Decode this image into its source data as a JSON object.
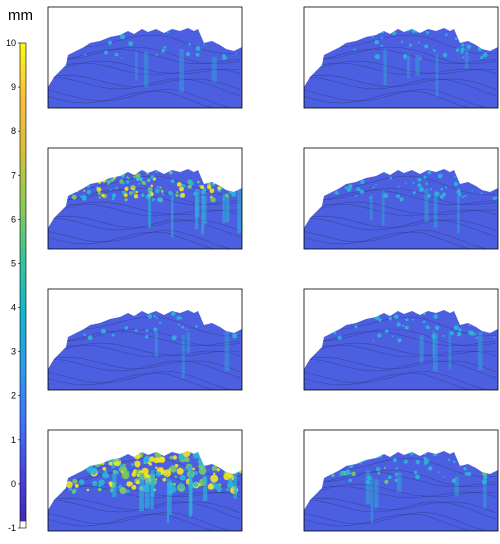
{
  "colorbar": {
    "unit": "mm",
    "colors": [
      "#3e26a8",
      "#4743e6",
      "#3f74fd",
      "#2b9cf0",
      "#14b5cd",
      "#3ac496",
      "#8cca59",
      "#d5c03a",
      "#fdbe3c",
      "#f9fb14"
    ]
  },
  "colors": {
    "land": "#4b5fe0",
    "land_shade": "#5a6fe8",
    "contour": "#2a2f6e",
    "cyan": "#2ab7d8",
    "green": "#7ccb5f",
    "yellow": "#f6e41f",
    "frame": "#000000"
  },
  "chart_data": {
    "type": "heatmap",
    "colorbar_ticks": [
      -1,
      0,
      1,
      2,
      3,
      4,
      5,
      6,
      7,
      8,
      9,
      10
    ],
    "vmin": -1,
    "vmax": 10,
    "panels": [
      {
        "id": "row1-left",
        "intensity": 0.15
      },
      {
        "id": "row1-right",
        "intensity": 0.2
      },
      {
        "id": "row2-left",
        "intensity": 0.7
      },
      {
        "id": "row2-right",
        "intensity": 0.3
      },
      {
        "id": "row3-left",
        "intensity": 0.12
      },
      {
        "id": "row3-right",
        "intensity": 0.25
      },
      {
        "id": "row4-left",
        "intensity": 1.0
      },
      {
        "id": "row4-right",
        "intensity": 0.35
      }
    ]
  }
}
